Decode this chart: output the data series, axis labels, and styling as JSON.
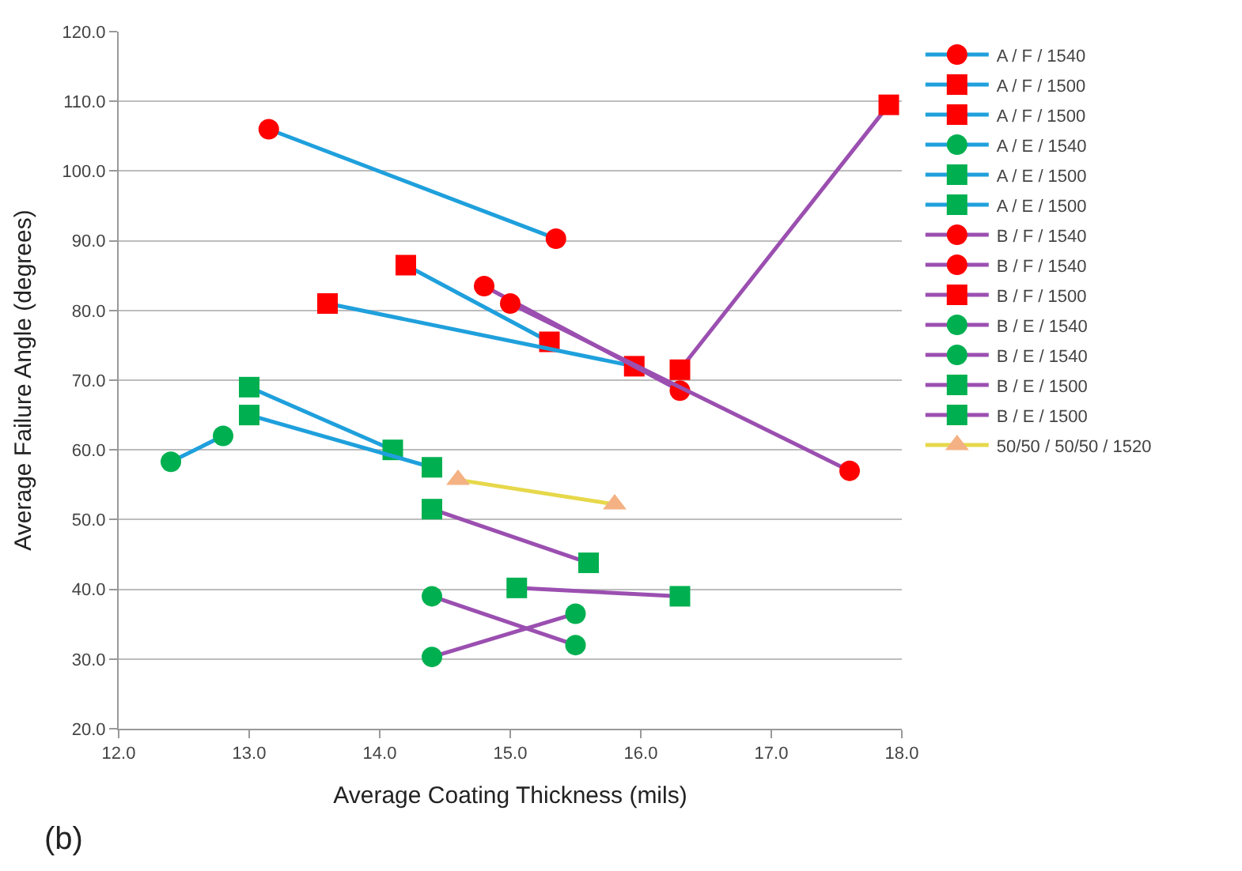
{
  "chart_data": {
    "type": "line",
    "xlabel": "Average Coating Thickness (mils)",
    "ylabel": "Average Failure Angle (degrees)",
    "xlim": [
      12,
      18
    ],
    "ylim": [
      20,
      120
    ],
    "xticks": [
      {
        "value": 12,
        "label": "12.0"
      },
      {
        "value": 13,
        "label": "13.0"
      },
      {
        "value": 14,
        "label": "14.0"
      },
      {
        "value": 15,
        "label": "15.0"
      },
      {
        "value": 16,
        "label": "16.0"
      },
      {
        "value": 17,
        "label": "17.0"
      },
      {
        "value": 18,
        "label": "18.0"
      }
    ],
    "yticks": [
      {
        "value": 20,
        "label": "20.0"
      },
      {
        "value": 30,
        "label": "30.0"
      },
      {
        "value": 40,
        "label": "40.0"
      },
      {
        "value": 50,
        "label": "50.0"
      },
      {
        "value": 60,
        "label": "60.0"
      },
      {
        "value": 70,
        "label": "70.0"
      },
      {
        "value": 80,
        "label": "80.0"
      },
      {
        "value": 90,
        "label": "90.0"
      },
      {
        "value": 100,
        "label": "100.0"
      },
      {
        "value": 110,
        "label": "110.0"
      },
      {
        "value": 120,
        "label": "120.0"
      }
    ],
    "grid": "y",
    "legend": "right",
    "line_style": "solid",
    "annotations": [
      "(b)"
    ],
    "series": [
      {
        "name": "A / F / 1540",
        "color": "#1fa0dc",
        "colors": [
          "#ff0000",
          "#ff0000"
        ],
        "marker": "circle",
        "x": [
          13.15,
          15.35
        ],
        "values": [
          106,
          90.3
        ]
      },
      {
        "name": "A / F / 1500",
        "color": "#1fa0dc",
        "colors": [
          "#ff0000",
          "#ff0000"
        ],
        "marker": "square",
        "x": [
          14.2,
          15.3
        ],
        "values": [
          86.5,
          75.5
        ]
      },
      {
        "name": "A / F / 1500",
        "color": "#1fa0dc",
        "colors": [
          "#ff0000",
          "#ff0000"
        ],
        "marker": "square",
        "x": [
          13.6,
          15.95
        ],
        "values": [
          81,
          72
        ]
      },
      {
        "name": "A / E / 1540",
        "color": "#1fa0dc",
        "colors": [
          "#00b050",
          "#00b050"
        ],
        "marker": "circle",
        "x": [
          12.4,
          12.8
        ],
        "values": [
          58.3,
          62
        ]
      },
      {
        "name": "A / E / 1500",
        "color": "#1fa0dc",
        "colors": [
          "#00b050",
          "#00b050"
        ],
        "marker": "square",
        "x": [
          13.0,
          14.1
        ],
        "values": [
          69,
          60
        ]
      },
      {
        "name": "A / E / 1500",
        "color": "#1fa0dc",
        "colors": [
          "#00b050",
          "#00b050"
        ],
        "marker": "square",
        "x": [
          13.0,
          14.4
        ],
        "values": [
          65,
          57.5
        ]
      },
      {
        "name": "B / F / 1540",
        "color": "#9b4fb0",
        "colors": [
          "#ff0000",
          "#ff0000"
        ],
        "marker": "circle",
        "x": [
          14.8,
          16.3
        ],
        "values": [
          83.5,
          68.5
        ]
      },
      {
        "name": "B / F / 1540",
        "color": "#9b4fb0",
        "colors": [
          "#ff0000",
          "#ff0000"
        ],
        "marker": "circle",
        "x": [
          15.0,
          17.6
        ],
        "values": [
          81,
          57
        ]
      },
      {
        "name": "B / F / 1500",
        "color": "#9b4fb0",
        "colors": [
          "#ff0000",
          "#ff0000"
        ],
        "marker": "square",
        "x": [
          16.3,
          17.9
        ],
        "values": [
          71.5,
          109.5
        ]
      },
      {
        "name": "B / E / 1540",
        "color": "#9b4fb0",
        "colors": [
          "#00b050",
          "#00b050"
        ],
        "marker": "circle",
        "x": [
          14.4,
          15.5
        ],
        "values": [
          39,
          32
        ]
      },
      {
        "name": "B / E / 1540",
        "color": "#9b4fb0",
        "colors": [
          "#00b050",
          "#00b050"
        ],
        "marker": "circle",
        "x": [
          14.4,
          15.5
        ],
        "values": [
          30.3,
          36.5
        ]
      },
      {
        "name": "B / E / 1500",
        "color": "#9b4fb0",
        "colors": [
          "#00b050",
          "#00b050"
        ],
        "marker": "square",
        "x": [
          14.4,
          15.6
        ],
        "values": [
          51.5,
          43.8
        ]
      },
      {
        "name": "B / E / 1500",
        "color": "#9b4fb0",
        "colors": [
          "#00b050",
          "#00b050"
        ],
        "marker": "square",
        "x": [
          15.05,
          16.3
        ],
        "values": [
          40.2,
          39
        ]
      },
      {
        "name": "50/50 / 50/50 / 1520",
        "color": "#e6d84a",
        "colors": [
          "#f4b183",
          "#f4b183"
        ],
        "marker": "triangle",
        "x": [
          14.6,
          15.8
        ],
        "values": [
          55.7,
          52.2
        ]
      }
    ]
  }
}
